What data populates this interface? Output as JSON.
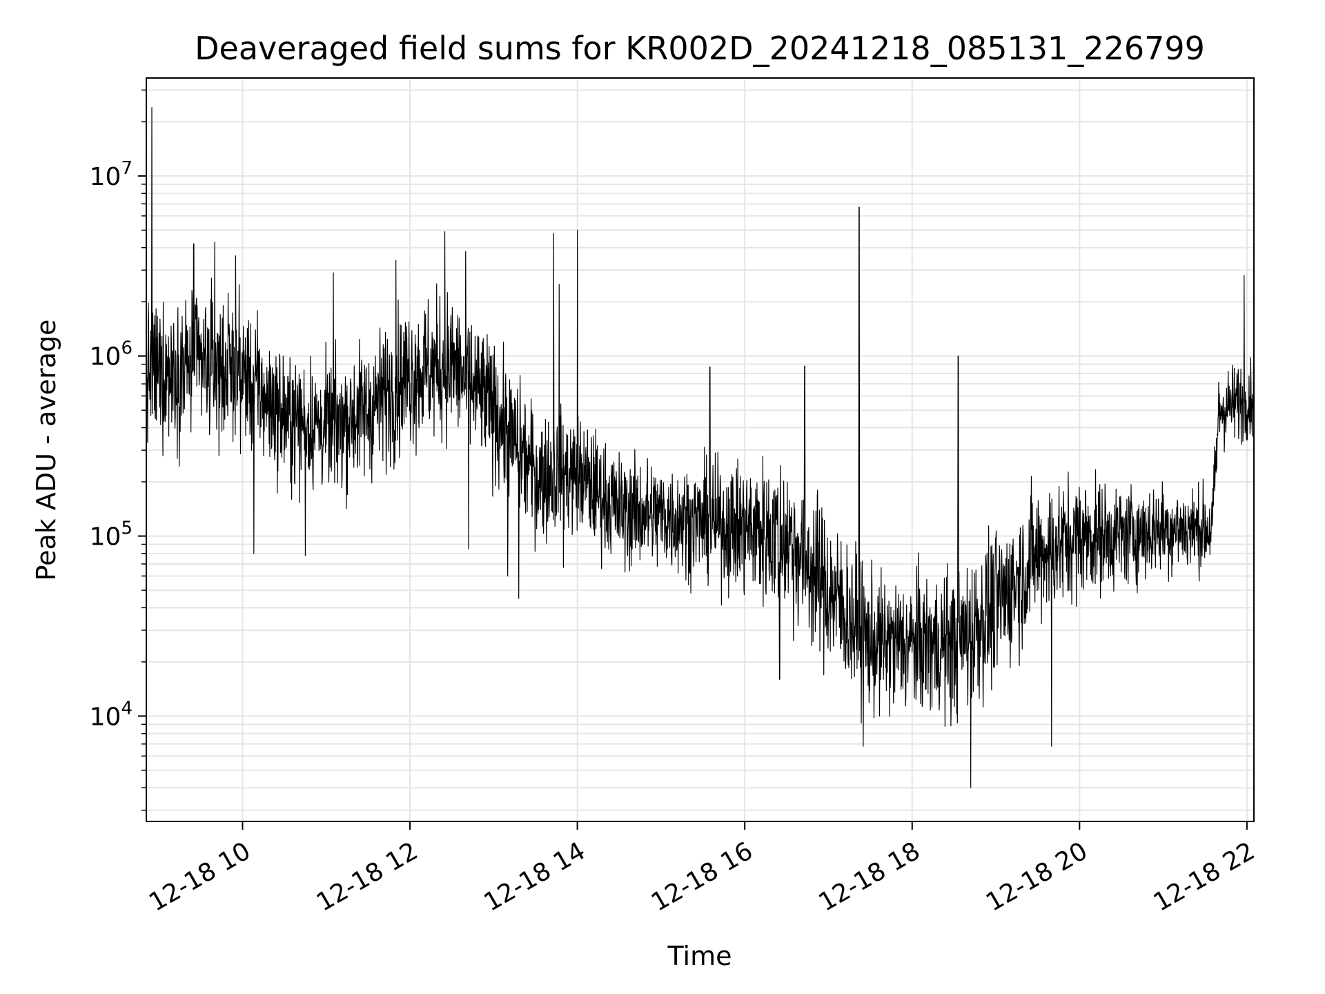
{
  "chart_data": {
    "type": "line",
    "title": "Deaveraged field sums for KR002D_20241218_085131_226799",
    "xlabel": "Time",
    "ylabel": "Peak ADU - average",
    "yscale": "log",
    "ylim": [
      2600,
      35000000
    ],
    "xlim": [
      "2024-12-18 08:51",
      "2024-12-18 22:05"
    ],
    "grid": true,
    "line_color": "#000000",
    "grid_color": "#e5e5e5",
    "x_ticks": [
      {
        "time": "2024-12-18 10:00",
        "label": "12-18 10"
      },
      {
        "time": "2024-12-18 12:00",
        "label": "12-18 12"
      },
      {
        "time": "2024-12-18 14:00",
        "label": "12-18 14"
      },
      {
        "time": "2024-12-18 16:00",
        "label": "12-18 16"
      },
      {
        "time": "2024-12-18 18:00",
        "label": "12-18 18"
      },
      {
        "time": "2024-12-18 20:00",
        "label": "12-18 20"
      },
      {
        "time": "2024-12-18 22:00",
        "label": "12-18 22"
      }
    ],
    "y_ticks": [
      {
        "value": 10000,
        "base": "10",
        "exp": "4"
      },
      {
        "value": 100000,
        "base": "10",
        "exp": "5"
      },
      {
        "value": 1000000,
        "base": "10",
        "exp": "6"
      },
      {
        "value": 10000000,
        "base": "10",
        "exp": "7"
      }
    ],
    "trend": [
      {
        "time": "2024-12-18 08:51",
        "value": 800000,
        "spread": 2.2
      },
      {
        "time": "2024-12-18 09:30",
        "value": 900000,
        "spread": 2.3
      },
      {
        "time": "2024-12-18 10:00",
        "value": 800000,
        "spread": 2.2
      },
      {
        "time": "2024-12-18 10:30",
        "value": 450000,
        "spread": 2.1
      },
      {
        "time": "2024-12-18 11:00",
        "value": 400000,
        "spread": 2.1
      },
      {
        "time": "2024-12-18 11:30",
        "value": 500000,
        "spread": 2.2
      },
      {
        "time": "2024-12-18 12:00",
        "value": 800000,
        "spread": 2.3
      },
      {
        "time": "2024-12-18 12:30",
        "value": 900000,
        "spread": 2.3
      },
      {
        "time": "2024-12-18 13:00",
        "value": 500000,
        "spread": 2.2
      },
      {
        "time": "2024-12-18 13:30",
        "value": 220000,
        "spread": 2.1
      },
      {
        "time": "2024-12-18 14:00",
        "value": 220000,
        "spread": 2.0
      },
      {
        "time": "2024-12-18 14:30",
        "value": 140000,
        "spread": 1.9
      },
      {
        "time": "2024-12-18 15:00",
        "value": 130000,
        "spread": 1.9
      },
      {
        "time": "2024-12-18 15:30",
        "value": 120000,
        "spread": 1.9
      },
      {
        "time": "2024-12-18 16:00",
        "value": 110000,
        "spread": 2.2
      },
      {
        "time": "2024-12-18 16:30",
        "value": 100000,
        "spread": 2.5
      },
      {
        "time": "2024-12-18 17:00",
        "value": 50000,
        "spread": 2.5
      },
      {
        "time": "2024-12-18 17:30",
        "value": 25000,
        "spread": 2.2
      },
      {
        "time": "2024-12-18 18:00",
        "value": 25000,
        "spread": 2.2
      },
      {
        "time": "2024-12-18 18:30",
        "value": 25000,
        "spread": 2.4
      },
      {
        "time": "2024-12-18 19:00",
        "value": 40000,
        "spread": 2.4
      },
      {
        "time": "2024-12-18 19:30",
        "value": 80000,
        "spread": 2.2
      },
      {
        "time": "2024-12-18 20:00",
        "value": 100000,
        "spread": 2.0
      },
      {
        "time": "2024-12-18 20:30",
        "value": 100000,
        "spread": 1.8
      },
      {
        "time": "2024-12-18 21:00",
        "value": 110000,
        "spread": 1.7
      },
      {
        "time": "2024-12-18 21:35",
        "value": 110000,
        "spread": 1.6
      },
      {
        "time": "2024-12-18 21:40",
        "value": 500000,
        "spread": 1.6
      },
      {
        "time": "2024-12-18 22:05",
        "value": 600000,
        "spread": 1.6
      }
    ],
    "spikes": [
      {
        "time": "2024-12-18 08:55",
        "value": 24000000
      },
      {
        "time": "2024-12-18 09:25",
        "value": 4200000
      },
      {
        "time": "2024-12-18 09:40",
        "value": 4300000
      },
      {
        "time": "2024-12-18 09:55",
        "value": 3600000
      },
      {
        "time": "2024-12-18 10:08",
        "value": 80000
      },
      {
        "time": "2024-12-18 10:45",
        "value": 78000
      },
      {
        "time": "2024-12-18 11:05",
        "value": 2900000
      },
      {
        "time": "2024-12-18 11:50",
        "value": 3400000
      },
      {
        "time": "2024-12-18 12:25",
        "value": 4900000
      },
      {
        "time": "2024-12-18 12:40",
        "value": 3800000
      },
      {
        "time": "2024-12-18 12:42",
        "value": 85000
      },
      {
        "time": "2024-12-18 13:10",
        "value": 60000
      },
      {
        "time": "2024-12-18 13:18",
        "value": 45000
      },
      {
        "time": "2024-12-18 13:43",
        "value": 4800000
      },
      {
        "time": "2024-12-18 13:47",
        "value": 2500000
      },
      {
        "time": "2024-12-18 13:50",
        "value": 67000
      },
      {
        "time": "2024-12-18 14:00",
        "value": 5000000
      },
      {
        "time": "2024-12-18 15:35",
        "value": 870000
      },
      {
        "time": "2024-12-18 16:43",
        "value": 880000
      },
      {
        "time": "2024-12-18 16:25",
        "value": 16000
      },
      {
        "time": "2024-12-18 17:22",
        "value": 6700000
      },
      {
        "time": "2024-12-18 17:25",
        "value": 6800
      },
      {
        "time": "2024-12-18 18:33",
        "value": 1000000
      },
      {
        "time": "2024-12-18 18:42",
        "value": 4000
      },
      {
        "time": "2024-12-18 19:40",
        "value": 6800
      },
      {
        "time": "2024-12-18 21:58",
        "value": 2800000
      }
    ]
  }
}
